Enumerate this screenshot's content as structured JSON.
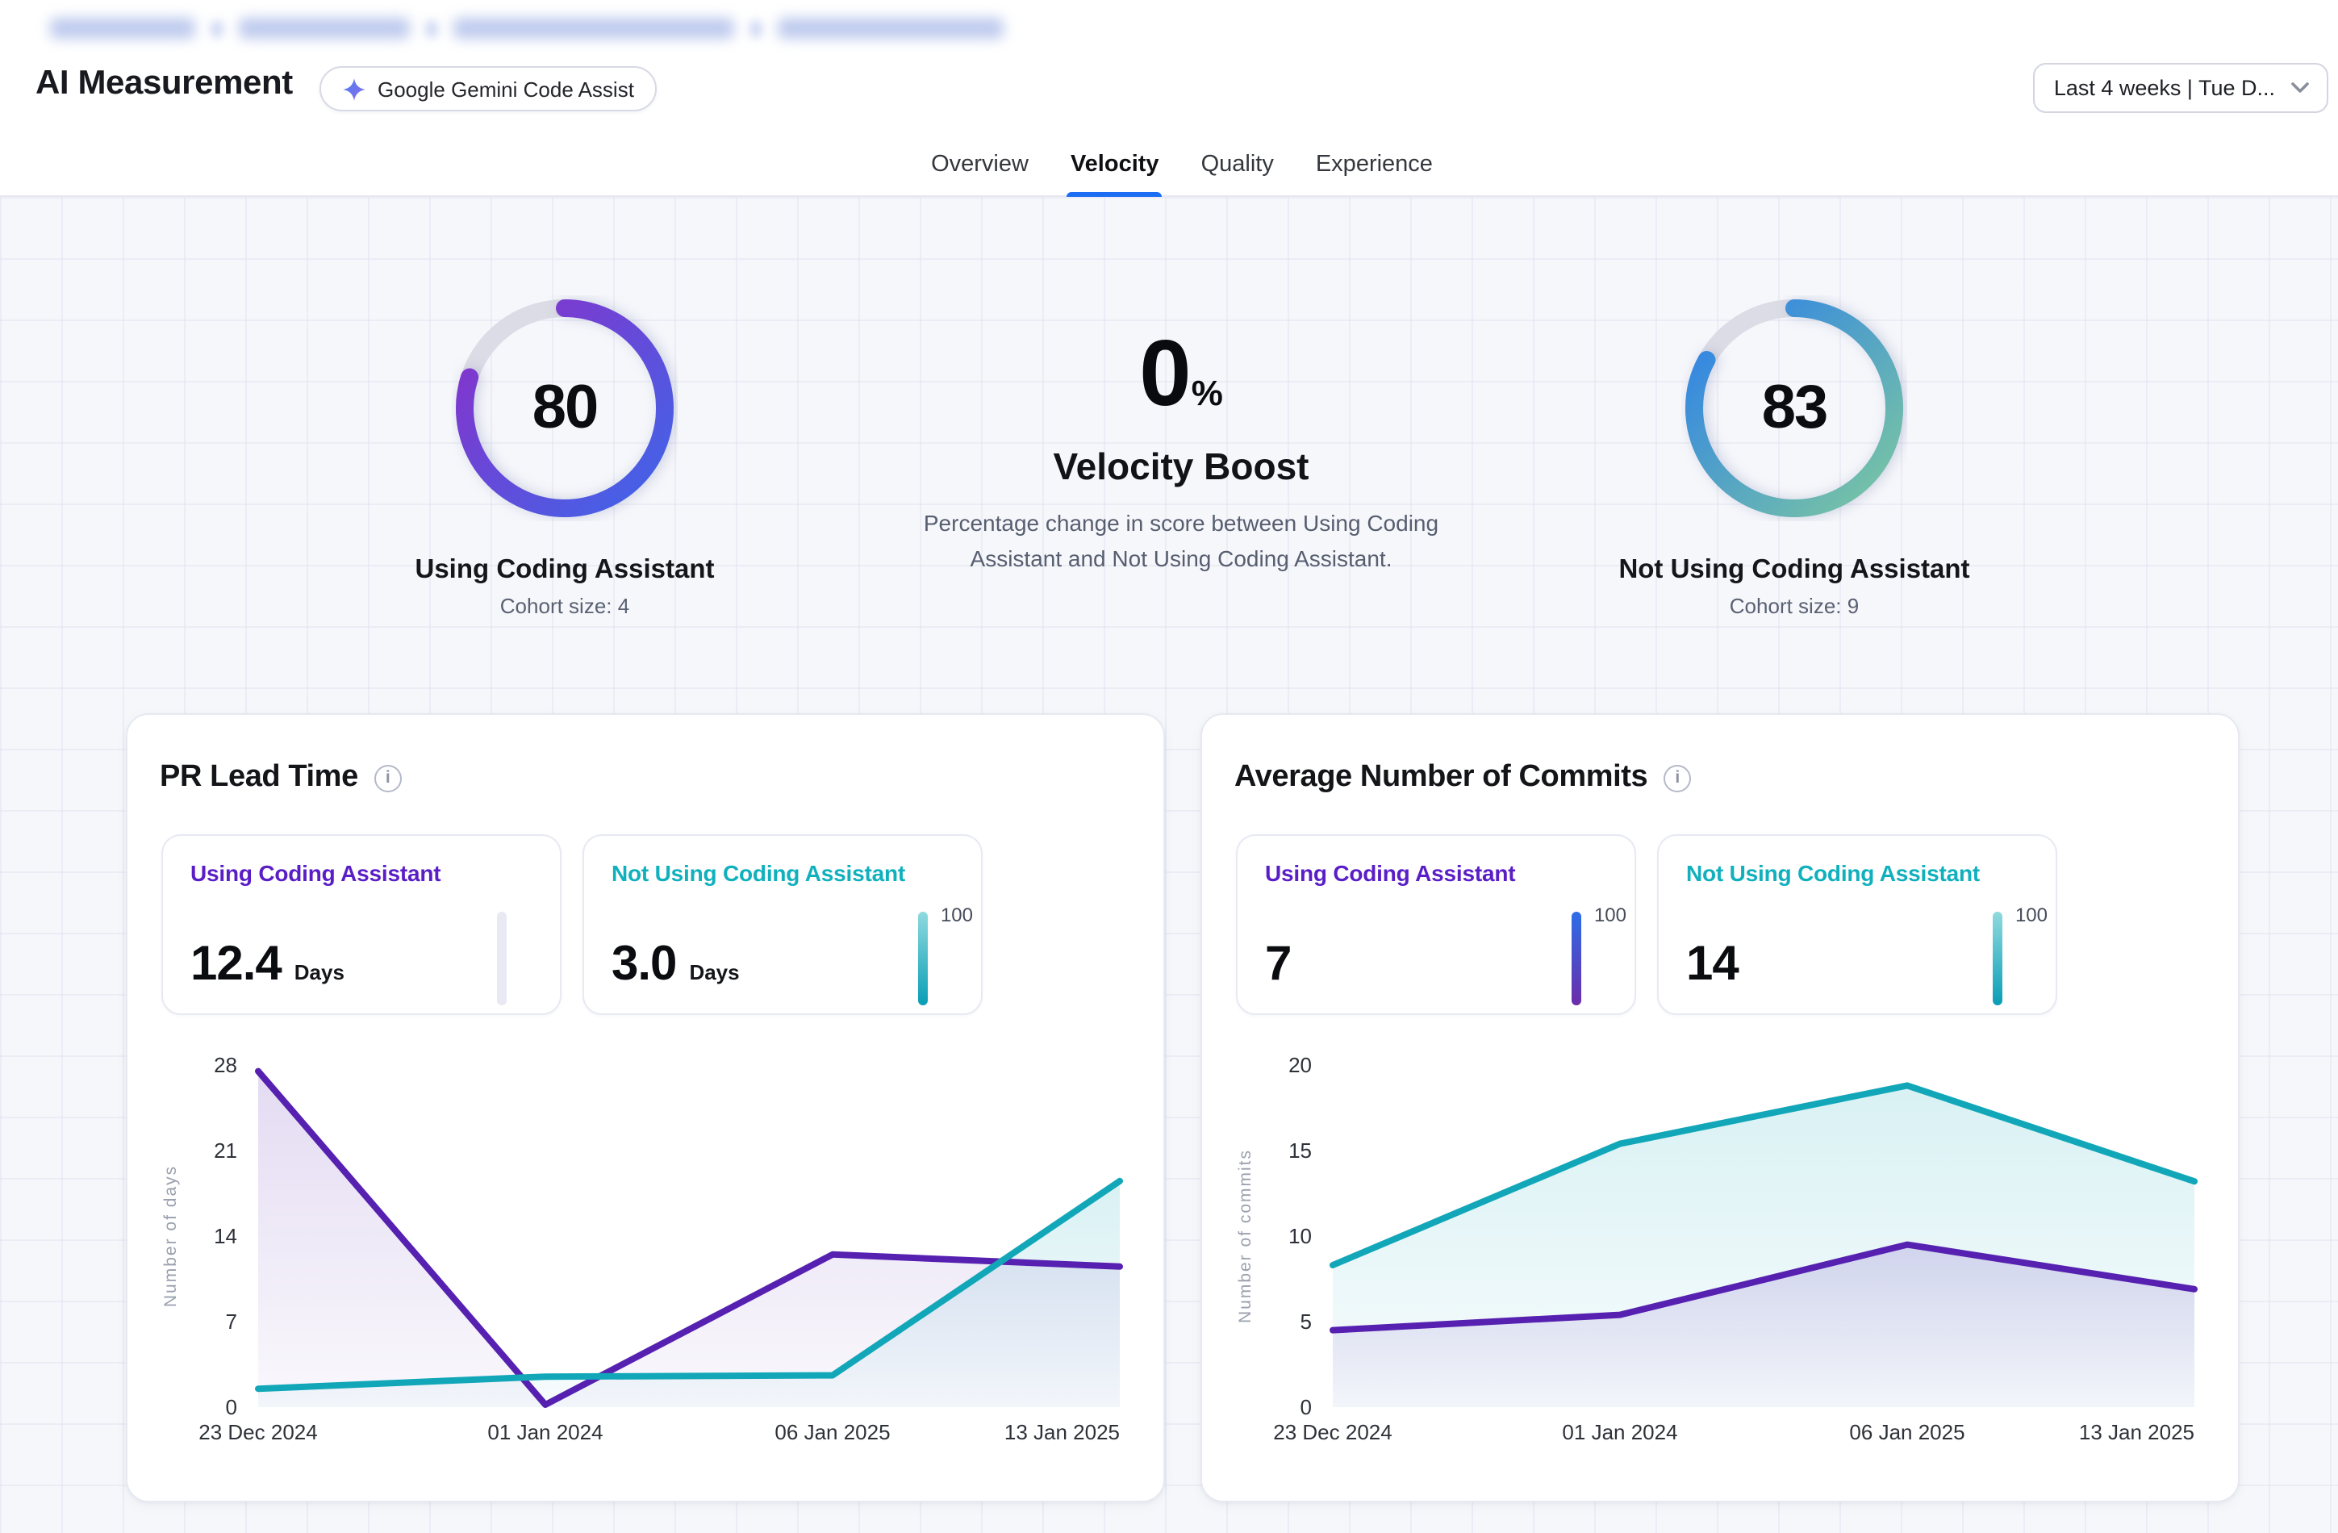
{
  "breadcrumb": {
    "redacted": true,
    "note": "breadcrumb links are blurred in source"
  },
  "header": {
    "title": "AI Measurement",
    "badge": {
      "icon": "gemini-sparkle-icon",
      "label": "Google Gemini Code Assist"
    },
    "date_range": {
      "value": "Last 4 weeks  | Tue D...",
      "icon": "chevron-down-icon"
    }
  },
  "tabs": [
    {
      "label": "Overview",
      "active": false
    },
    {
      "label": "Velocity",
      "active": true
    },
    {
      "label": "Quality",
      "active": false
    },
    {
      "label": "Experience",
      "active": false
    }
  ],
  "summary": {
    "left_gauge": {
      "value": "80",
      "percent": 80,
      "label": "Using Coding Assistant",
      "cohort": "Cohort size: 4",
      "gradient": [
        "#8b2fc9",
        "#3e66e9"
      ],
      "track_color": "#dcdce6"
    },
    "boost": {
      "value": "0",
      "unit": "%",
      "title": "Velocity Boost",
      "description": "Percentage change in score between Using Coding Assistant and Not Using Coding Assistant."
    },
    "right_gauge": {
      "value": "83",
      "percent": 83,
      "label": "Not Using Coding Assistant",
      "cohort": "Cohort size: 9",
      "gradient": [
        "#2b7fe9",
        "#7dc8a1"
      ],
      "track_color": "#dcdce6"
    }
  },
  "cards": [
    {
      "title": "PR Lead Time",
      "stats": [
        {
          "label": "Using Coding Assistant",
          "value": "12.4",
          "unit": "Days",
          "scale_max": ""
        },
        {
          "label": "Not Using Coding Assistant",
          "value": "3.0",
          "unit": "Days",
          "scale_max": "100"
        }
      ]
    },
    {
      "title": "Average Number of Commits",
      "stats": [
        {
          "label": "Using Coding Assistant",
          "value": "7",
          "unit": "",
          "scale_max": "100"
        },
        {
          "label": "Not Using Coding Assistant",
          "value": "14",
          "unit": "",
          "scale_max": "100"
        }
      ]
    }
  ],
  "chart_data": [
    {
      "type": "area",
      "title": "PR Lead Time",
      "x": [
        "23 Dec 2024",
        "01 Jan 2024",
        "06 Jan 2025",
        "13 Jan 2025"
      ],
      "ylabel": "Number of days",
      "yticks": [
        0,
        7,
        14,
        21,
        28
      ],
      "ylim": [
        0,
        28
      ],
      "grid": false,
      "legend": "none",
      "series": [
        {
          "name": "Using Coding Assistant",
          "color": "#5620b0",
          "values": [
            27.5,
            0.2,
            12.5,
            11.5
          ]
        },
        {
          "name": "Not Using Coding Assistant",
          "color": "#12a7b8",
          "values": [
            1.5,
            2.5,
            2.6,
            18.5
          ]
        }
      ]
    },
    {
      "type": "area",
      "title": "Average Number of Commits",
      "x": [
        "23 Dec 2024",
        "01 Jan 2024",
        "06 Jan 2025",
        "13 Jan 2025"
      ],
      "ylabel": "Number of commits",
      "yticks": [
        0,
        5,
        10,
        15,
        20
      ],
      "ylim": [
        0,
        20
      ],
      "grid": false,
      "legend": "none",
      "series": [
        {
          "name": "Using Coding Assistant",
          "color": "#5620b0",
          "values": [
            4.5,
            5.4,
            9.5,
            6.9
          ]
        },
        {
          "name": "Not Using Coding Assistant",
          "color": "#12a7b8",
          "values": [
            8.3,
            15.4,
            18.8,
            13.2
          ]
        }
      ]
    }
  ],
  "theme": {
    "accent_purple": "#5a1ec6",
    "accent_teal": "#10b0bd",
    "tab_active_blue": "#1b6ef3",
    "grid_bg": "#f6f7fb",
    "bar_teal_gradient": [
      "#90dade",
      "#099eb6"
    ],
    "bar_purple_gradient": [
      "#2d6de8",
      "#6b2dab"
    ]
  }
}
